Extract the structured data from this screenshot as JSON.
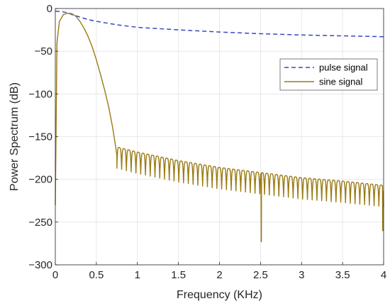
{
  "chart_data": {
    "type": "line",
    "xlabel": "Frequency (KHz)",
    "ylabel": "Power Spectrum (dB)",
    "xlim": [
      0,
      4
    ],
    "ylim": [
      -300,
      0
    ],
    "xticks": [
      0,
      0.5,
      1,
      1.5,
      2,
      2.5,
      3,
      3.5,
      4
    ],
    "xtick_labels": [
      "0",
      "0.5",
      "1",
      "1.5",
      "2",
      "2.5",
      "3",
      "3.5",
      "4"
    ],
    "yticks": [
      0,
      -50,
      -100,
      -150,
      -200,
      -250,
      -300
    ],
    "ytick_labels": [
      "0",
      "−50",
      "−100",
      "−150",
      "−200",
      "−250",
      "−300"
    ],
    "grid": true,
    "legend_position": "top-right",
    "series": [
      {
        "name": "pulse signal",
        "style": "dashed",
        "color": "#3b48c4",
        "x": [
          0,
          0.05,
          0.1,
          0.15,
          0.2,
          0.3,
          0.4,
          0.5,
          0.75,
          1,
          1.5,
          2,
          2.5,
          3,
          3.5,
          4
        ],
        "y": [
          -3,
          -3.5,
          -4,
          -5,
          -7,
          -10,
          -13,
          -15,
          -19,
          -22,
          -25,
          -27.5,
          -29.5,
          -31,
          -32,
          -33
        ]
      },
      {
        "name": "sine signal",
        "style": "solid",
        "color": "#9a7a12",
        "x": [
          0,
          0.02,
          0.05,
          0.1,
          0.15,
          0.2,
          0.25,
          0.3,
          0.35,
          0.4,
          0.45,
          0.5,
          0.55,
          0.6,
          0.65,
          0.7,
          0.74,
          0.75
        ],
        "y": [
          -230,
          -40,
          -15,
          -7,
          -5.5,
          -6,
          -9,
          -15,
          -23,
          -33,
          -45,
          -60,
          -77,
          -95,
          -115,
          -140,
          -165,
          -172
        ],
        "sidelobe_envelope": {
          "x": [
            0.75,
            1,
            1.5,
            2,
            2.5,
            3,
            3.5,
            4
          ],
          "y": [
            -162,
            -168,
            -178,
            -186,
            -192,
            -198,
            -202,
            -207
          ]
        },
        "sidelobe_count": 56,
        "null_depth_below_envelope": 25,
        "deep_nulls": [
          {
            "x": 2.51,
            "y": -273
          },
          {
            "x": 3.99,
            "y": -260
          }
        ]
      }
    ]
  }
}
